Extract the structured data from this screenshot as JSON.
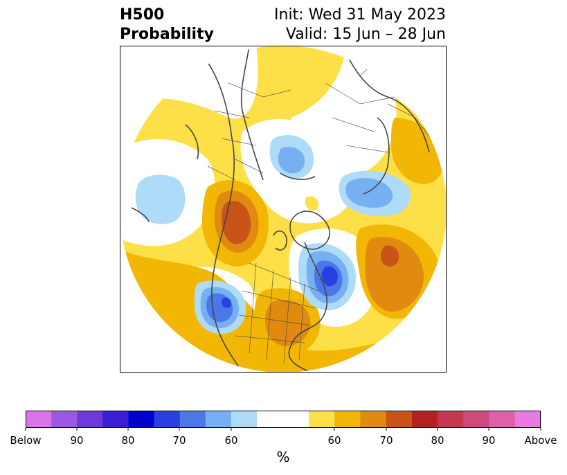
{
  "title": {
    "left_line1": "H500",
    "left_line2": "Probability",
    "right_line1": "Init: Wed 31 May 2023",
    "right_line2": "Valid: 15 Jun – 28 Jun"
  },
  "colorbar": {
    "unit": "%",
    "labels": [
      "Below",
      "90",
      "80",
      "70",
      "60",
      "60",
      "70",
      "80",
      "90",
      "Above"
    ],
    "colors": [
      "#d876e8",
      "#9b59e0",
      "#6a3bd8",
      "#3a1fd6",
      "#0000cd",
      "#2a3fe0",
      "#4a78e8",
      "#76b0f2",
      "#aedcf8",
      "#ffffff",
      "#fde047",
      "#f2b705",
      "#e08a10",
      "#c9541a",
      "#b22222",
      "#c4374f",
      "#d04a80",
      "#dd60a8",
      "#e87ae0"
    ]
  },
  "map": {
    "projection": "north-polar-stereographic",
    "anomaly_colors": {
      "above_light": "#fde047",
      "above_mid": "#f2b705",
      "above_high": "#e08a10",
      "above_vhigh": "#c9541a",
      "below_light": "#aedcf8",
      "below_mid": "#76b0f2",
      "below_high": "#4a78e8",
      "below_vhigh": "#2a3fe0",
      "coast": "#444444"
    }
  }
}
